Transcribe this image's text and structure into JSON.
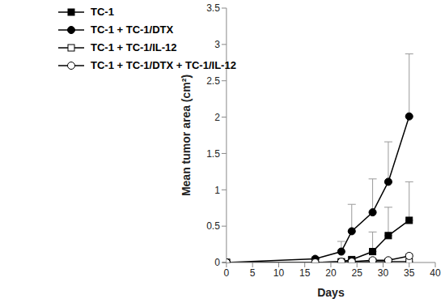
{
  "chart_data": {
    "type": "line",
    "x_label": "Days",
    "y_label": "Mean tumor area (cm²)",
    "x": [
      0,
      17,
      22,
      24,
      28,
      31,
      35
    ],
    "xlim": [
      0,
      40
    ],
    "xticks": [
      0,
      5,
      10,
      15,
      20,
      25,
      30,
      35,
      40
    ],
    "ylim": [
      0,
      3.5
    ],
    "yticks": [
      0,
      0.5,
      1,
      1.5,
      2,
      2.5,
      3,
      3.5
    ],
    "grid": false,
    "legend": "upper left",
    "series": [
      {
        "name": "TC-1",
        "color": "#000000",
        "marker": "square",
        "values": [
          0,
          0,
          0.01,
          0.04,
          0.15,
          0.37,
          0.58
        ],
        "error": [
          0,
          0,
          0.01,
          0.03,
          0.27,
          0.39,
          0.53
        ]
      },
      {
        "name": "TC-1 + TC-1/DTX",
        "color": "#000000",
        "marker": "circle",
        "values": [
          0,
          0.05,
          0.15,
          0.43,
          0.69,
          1.11,
          2.01
        ],
        "error": [
          0,
          0.02,
          0.14,
          0.37,
          0.46,
          0.55,
          0.86
        ]
      },
      {
        "name": "TC-1 + TC-1/IL-12",
        "color": "#000000",
        "marker": "open_square",
        "values": [
          0,
          0,
          0,
          0,
          0.01,
          0.01,
          0.01
        ],
        "error": [
          0,
          0,
          0,
          0,
          0,
          0,
          0
        ]
      },
      {
        "name": "TC-1 + TC-1/DTX + TC-1/IL-12",
        "color": "#000000",
        "marker": "open_circle",
        "values": [
          0,
          0,
          0.01,
          0.01,
          0.03,
          0.03,
          0.09
        ],
        "error": [
          0,
          0,
          0,
          0,
          0.02,
          0.02,
          0.03
        ]
      }
    ]
  }
}
